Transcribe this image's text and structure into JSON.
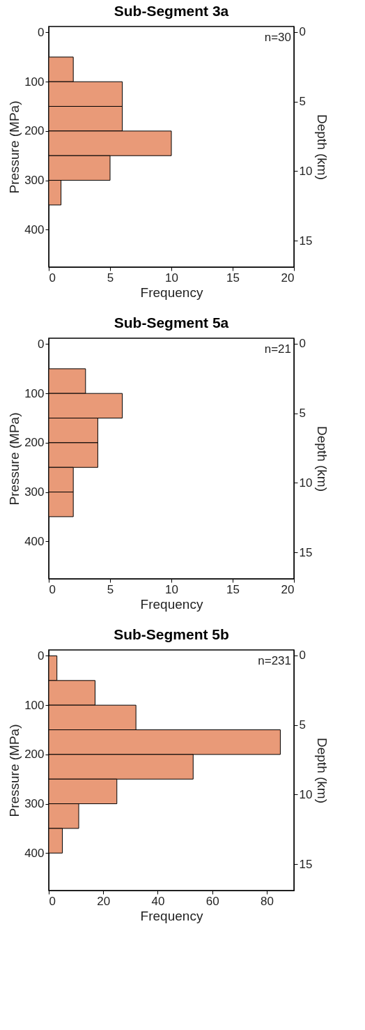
{
  "chart_data": [
    {
      "type": "histogram",
      "orientation": "horizontal",
      "title": "Sub-Segment 3a",
      "xlabel": "Frequency",
      "ylabel": "Pressure (MPa)",
      "y2label": "Depth (km)",
      "bins": [
        50,
        100,
        150,
        200,
        250,
        300,
        350
      ],
      "values": [
        2,
        6,
        6,
        10,
        5,
        1
      ],
      "color": "#e99a78",
      "xlim": [
        0,
        20
      ],
      "xticks": [
        0,
        5,
        10,
        15,
        20
      ],
      "ylim": [
        476,
        -12
      ],
      "yticks": [
        0,
        100,
        200,
        300,
        400
      ],
      "y2lim": [
        16.9,
        -0.4
      ],
      "y2ticks": [
        0,
        5,
        10,
        15
      ],
      "annotations": [
        "n=30"
      ]
    },
    {
      "type": "histogram",
      "orientation": "horizontal",
      "title": "Sub-Segment 5a",
      "xlabel": "Frequency",
      "ylabel": "Pressure (MPa)",
      "y2label": "Depth (km)",
      "bins": [
        50,
        100,
        150,
        200,
        250,
        300,
        350
      ],
      "values": [
        3,
        6,
        4,
        4,
        2,
        2
      ],
      "color": "#e99a78",
      "xlim": [
        0,
        20
      ],
      "xticks": [
        0,
        5,
        10,
        15,
        20
      ],
      "ylim": [
        476,
        -12
      ],
      "yticks": [
        0,
        100,
        200,
        300,
        400
      ],
      "y2lim": [
        16.9,
        -0.4
      ],
      "y2ticks": [
        0,
        5,
        10,
        15
      ],
      "annotations": [
        "n=21"
      ]
    },
    {
      "type": "histogram",
      "orientation": "horizontal",
      "title": "Sub-Segment 5b",
      "xlabel": "Frequency",
      "ylabel": "Pressure (MPa)",
      "y2label": "Depth (km)",
      "bins": [
        0,
        50,
        100,
        150,
        200,
        250,
        300,
        350,
        400
      ],
      "values": [
        3,
        17,
        32,
        85,
        53,
        25,
        11,
        5
      ],
      "color": "#e99a78",
      "xlim": [
        0,
        90
      ],
      "xticks": [
        0,
        20,
        40,
        60,
        80
      ],
      "ylim": [
        476,
        -12
      ],
      "yticks": [
        0,
        100,
        200,
        300,
        400
      ],
      "y2lim": [
        16.9,
        -0.4
      ],
      "y2ticks": [
        0,
        5,
        10,
        15
      ],
      "annotations": [
        "n=231"
      ]
    }
  ]
}
